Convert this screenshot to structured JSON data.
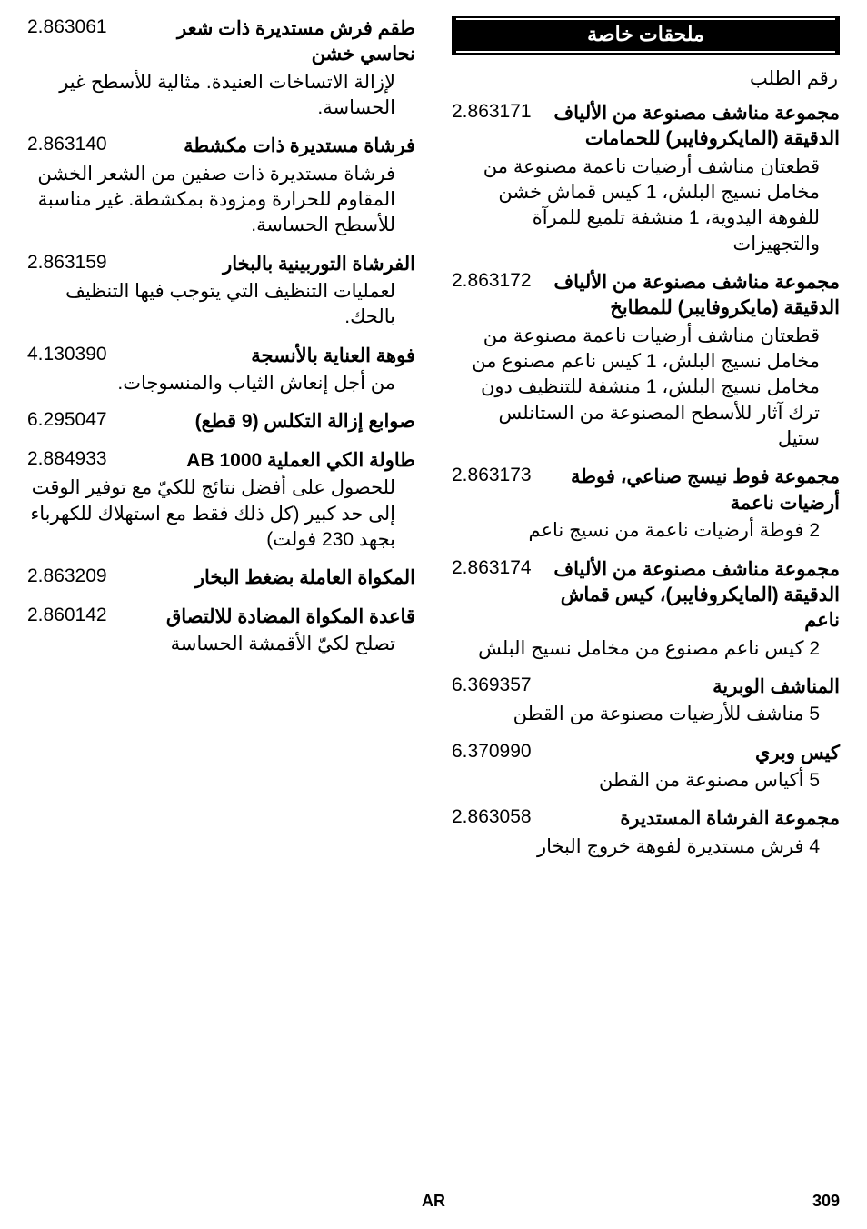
{
  "section_header": "ملحقات خاصة",
  "sub_heading": "رقم الطلب",
  "col1": [
    {
      "title": "مجموعة مناشف مصنوعة من الألياف الدقيقة (المايكروفايبر) للحمامات",
      "number": "2.863171",
      "desc": "قطعتان مناشف أرضيات ناعمة مصنوعة من مخامل نسيج البلش، 1 كيس قماش خشن للفوهة اليدوية، 1 منشفة تلميع للمرآة والتجهيزات"
    },
    {
      "title": "مجموعة مناشف مصنوعة من الألياف الدقيقة (مايكروفايبر) للمطابخ",
      "number": "2.863172",
      "desc": "قطعتان مناشف أرضيات ناعمة مصنوعة من مخامل نسيج البلش، 1 كيس ناعم مصنوع من مخامل نسيج البلش، 1 منشفة للتنظيف دون ترك آثار للأسطح المصنوعة من الستانلس ستيل"
    },
    {
      "title": "مجموعة فوط نيسج صناعي، فوطة أرضيات ناعمة",
      "number": "2.863173",
      "desc": "2 فوطة أرضيات ناعمة من نسيج ناعم"
    },
    {
      "title": "مجموعة مناشف مصنوعة من الألياف الدقيقة (المايكروفايبر)، كيس قماش ناعم",
      "number": "2.863174",
      "desc": "2 كيس ناعم مصنوع من مخامل نسيج البلش"
    },
    {
      "title": "المناشف الوبرية",
      "number": "6.369357",
      "desc": "5 مناشف للأرضيات مصنوعة من القطن"
    },
    {
      "title": "كيس وبري",
      "number": "6.370990",
      "desc": "5 أكياس مصنوعة من القطن"
    },
    {
      "title": "مجموعة الفرشاة المستديرة",
      "number": "2.863058",
      "desc": "4 فرش مستديرة لفوهة خروج البخار"
    }
  ],
  "col2": [
    {
      "title": "طقم فرش مستديرة ذات شعر نحاسي خشن",
      "number": "2.863061",
      "desc": "لإزالة الاتساخات العنيدة. مثالية للأسطح غير الحساسة."
    },
    {
      "title": "فرشاة مستديرة ذات مكشطة",
      "number": "2.863140",
      "desc": "فرشاة مستديرة ذات صفين من الشعر الخشن المقاوم للحرارة ومزودة بمكشطة. غير مناسبة للأسطح الحساسة."
    },
    {
      "title": "الفرشاة التوربينية بالبخار",
      "number": "2.863159",
      "desc": "لعمليات التنظيف التي يتوجب فيها التنظيف بالحك."
    },
    {
      "title": "فوهة العناية بالأنسجة",
      "number": "4.130390",
      "desc": "من أجل إنعاش الثياب والمنسوجات."
    },
    {
      "title": "صوابع إزالة التكلس (9 قطع)",
      "number": "6.295047",
      "desc": ""
    },
    {
      "title": "طاولة الكي العملية AB 1000",
      "number": "2.884933",
      "desc": "للحصول على أفضل نتائج للكيّ مع توفير الوقت إلى حد كبير (كل ذلك فقط مع استهلاك للكهرباء بجهد 230 فولت)"
    },
    {
      "title": "المكواة العاملة بضغط البخار",
      "number": "2.863209",
      "desc": ""
    },
    {
      "title": "قاعدة المكواة المضادة للالتصاق",
      "number": "2.860142",
      "desc": "تصلح لكيّ الأقمشة الحساسة"
    }
  ],
  "footer": {
    "lang": "AR",
    "page": "309"
  },
  "styles": {
    "bg_color": "#ffffff",
    "text_color": "#000000",
    "header_bg": "#000000",
    "header_fg": "#ffffff",
    "title_fontsize": 21,
    "body_fontsize": 21
  }
}
